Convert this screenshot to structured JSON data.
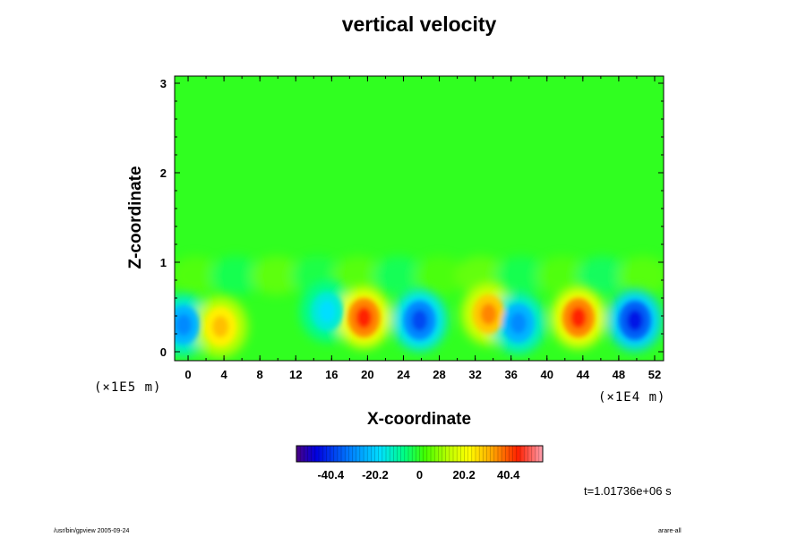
{
  "chart_data": {
    "type": "heatmap",
    "title": "vertical velocity",
    "xlabel": "X-coordinate",
    "ylabel": "Z-coordinate",
    "x_unit": "(×1E4 m)",
    "y_unit": "(×1E5 m)",
    "xlim": [
      -1.5,
      53
    ],
    "ylim": [
      -0.1,
      3.08
    ],
    "x_ticks": [
      "0",
      "4",
      "8",
      "12",
      "16",
      "20",
      "24",
      "28",
      "32",
      "36",
      "40",
      "44",
      "48",
      "52"
    ],
    "y_ticks": [
      "0",
      "1",
      "2",
      "3"
    ],
    "colorbar": {
      "ticks": [
        "-40.4",
        "-20.2",
        "0",
        "20.2",
        "40.4"
      ],
      "range": [
        -56,
        56
      ]
    },
    "background_value": 0,
    "features": [
      {
        "x": -0.5,
        "z": 0.3,
        "value": -30
      },
      {
        "x": 3.6,
        "z": 0.28,
        "value": 30
      },
      {
        "x": 15.5,
        "z": 0.45,
        "value": -18
      },
      {
        "x": 19.6,
        "z": 0.38,
        "value": 45
      },
      {
        "x": 25.8,
        "z": 0.35,
        "value": -38
      },
      {
        "x": 33.5,
        "z": 0.42,
        "value": 36
      },
      {
        "x": 36.8,
        "z": 0.32,
        "value": -30
      },
      {
        "x": 43.5,
        "z": 0.38,
        "value": 45
      },
      {
        "x": 49.8,
        "z": 0.35,
        "value": -44
      }
    ]
  },
  "timestamp": "t=1.01736e+06 s",
  "footer_left": "/usr/bin/gpview 2005-09-24",
  "footer_right": "arare-all"
}
